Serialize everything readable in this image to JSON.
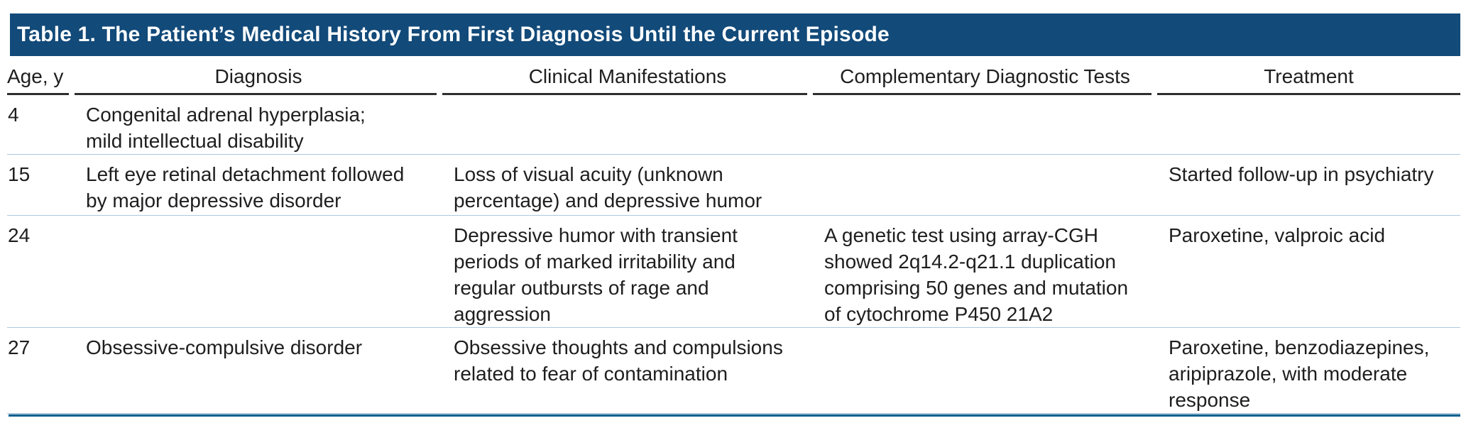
{
  "title": "Table 1. The Patient’s Medical History From First Diagnosis Until the Current Episode",
  "columns": [
    "Age, y",
    "Diagnosis",
    "Clinical Manifestations",
    "Complementary Diagnostic Tests",
    "Treatment"
  ],
  "rows": [
    {
      "age": "4",
      "diagnosis": "Congenital adrenal hyperplasia;\nmild intellectual disability",
      "clinical": "",
      "tests": "",
      "treatment": ""
    },
    {
      "age": "15",
      "diagnosis": "Left eye retinal detachment followed\nby major depressive disorder",
      "clinical": "Loss of visual acuity (unknown\npercentage) and depressive humor",
      "tests": "",
      "treatment": "Started follow-up in psychiatry"
    },
    {
      "age": "24",
      "diagnosis": "",
      "clinical": "Depressive humor with transient\nperiods of marked irritability and\nregular outbursts of rage and\naggression",
      "tests": "A genetic test using array-CGH\nshowed 2q14.2-q21.1 duplication\ncomprising 50 genes and mutation\nof cytochrome P450 21A2",
      "treatment": "Paroxetine, valproic acid"
    },
    {
      "age": "27",
      "diagnosis": "Obsessive-compulsive disorder",
      "clinical": "Obsessive thoughts and compulsions\nrelated to fear of contamination",
      "tests": "",
      "treatment": "Paroxetine, benzodiazepines,\naripiprazole, with moderate\nresponse"
    }
  ],
  "colors": {
    "title_bar_background": "#124a79",
    "title_text": "#ffffff",
    "body_text": "#1e1e1e",
    "header_underline": "#2f2f2f",
    "row_divider": "#adc9e0",
    "bottom_rule": "#0d618d",
    "bottom_rule_highlight": "#a9c7da"
  }
}
